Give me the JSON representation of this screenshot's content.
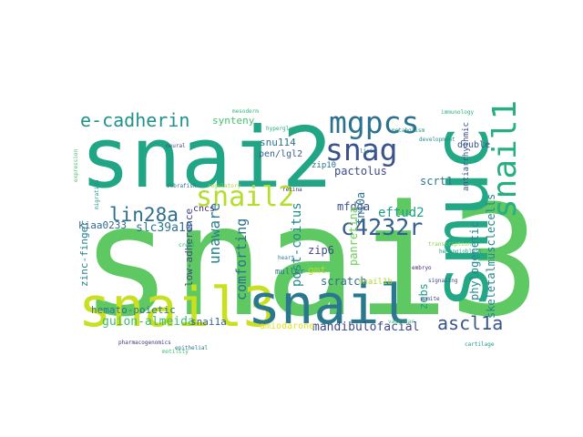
{
  "words": [
    {
      "id": "snai3",
      "text": "snai3",
      "color": "#5ec962"
    },
    {
      "id": "snai2",
      "text": "snai2",
      "color": "#21a685"
    },
    {
      "id": "smuc",
      "text": "smuc",
      "color": "#22a884"
    },
    {
      "id": "snail3",
      "text": "snail3",
      "color": "#c8e020"
    },
    {
      "id": "snail",
      "text": "snail",
      "color": "#2a788e"
    },
    {
      "id": "mgpcs",
      "text": "mgpcs",
      "color": "#2c728e"
    },
    {
      "id": "snag",
      "text": "snag",
      "color": "#3b528b"
    },
    {
      "id": "snail1",
      "text": "snail1",
      "color": "#28ae80"
    },
    {
      "id": "snail2",
      "text": "snail2",
      "color": "#b5de2b"
    },
    {
      "id": "e-cadherin",
      "text": "e-cadherin",
      "color": "#21918c"
    },
    {
      "id": "lin28a",
      "text": "lin28a",
      "color": "#2e6e8e"
    },
    {
      "id": "c4232r",
      "text": "c4232r",
      "color": "#355f8d"
    },
    {
      "id": "ascl1a",
      "text": "ascl1a",
      "color": "#39568c"
    },
    {
      "id": "unaware",
      "text": "unaware",
      "color": "#277f8e"
    },
    {
      "id": "comforting",
      "text": "comforting",
      "color": "#2d708e"
    },
    {
      "id": "guion-almeida",
      "text": "guion-almeida",
      "color": "#3fbc73"
    },
    {
      "id": "snai1a",
      "text": "snai1a",
      "color": "#33638d"
    },
    {
      "id": "slc39a10",
      "text": "slc39a10",
      "color": "#2b758e"
    },
    {
      "id": "kiaa0233",
      "text": "kiaa0233",
      "color": "#31688e"
    },
    {
      "id": "zinc-finger",
      "text": "zinc-finger",
      "color": "#26828e"
    },
    {
      "id": "low-adherence",
      "text": "low-adherence",
      "color": "#404688"
    },
    {
      "id": "hemato-poietic",
      "text": "hemato-poietic",
      "color": "#2a788e"
    },
    {
      "id": "post-coitus",
      "text": "post-coitus",
      "color": "#238a8d"
    },
    {
      "id": "pactolus",
      "text": "pactolus",
      "color": "#3e4a89"
    },
    {
      "id": "mfdga",
      "text": "mfdga",
      "color": "#3b528b"
    },
    {
      "id": "eftud2",
      "text": "eftud2",
      "color": "#1f9e89"
    },
    {
      "id": "fn10a",
      "text": "fn10a",
      "color": "#2c728e"
    },
    {
      "id": "panretina",
      "text": "panretina",
      "color": "#6ece58"
    },
    {
      "id": "scrt1",
      "text": "scrt1",
      "color": "#2a788e"
    },
    {
      "id": "zebs",
      "text": "zebs",
      "color": "#1fa088"
    },
    {
      "id": "phylogenetic",
      "text": "phylogenetic",
      "color": "#24868e"
    },
    {
      "id": "skeletalmusclecells",
      "text": "skeletalmusclecells",
      "color": "#25848e"
    },
    {
      "id": "mandibulofacial",
      "text": "mandibulofacial",
      "color": "#3e4989"
    },
    {
      "id": "amiodarone",
      "text": "amiodarone",
      "color": "#dde318"
    },
    {
      "id": "zip6",
      "text": "zip6",
      "color": "#3e4989"
    },
    {
      "id": "scratch",
      "text": "scratch",
      "color": "#2e6e8e"
    },
    {
      "id": "snu114",
      "text": "snu114",
      "color": "#2c738e"
    },
    {
      "id": "pen-lgl2",
      "text": "pen/lgl2",
      "color": "#355e8d"
    },
    {
      "id": "synteny",
      "text": "synteny",
      "color": "#48c16e"
    },
    {
      "id": "zip10",
      "text": "zip10",
      "color": "#2c738e"
    },
    {
      "id": "double",
      "text": "double",
      "color": "#3b528b"
    },
    {
      "id": "antiarrhythmic",
      "text": "antiarrhythmic",
      "color": "#3b528b"
    },
    {
      "id": "cncs",
      "text": "cncs",
      "color": "#482878"
    },
    {
      "id": "gmt",
      "text": "gmt",
      "color": "#b5de2b"
    },
    {
      "id": "muller",
      "text": "muller",
      "color": "#2a788e"
    },
    {
      "id": "snail1b",
      "text": "snail1b",
      "color": "#addc30"
    },
    {
      "id": "immunology",
      "text": "immunology",
      "color": "#30b47b"
    },
    {
      "id": "metabolism",
      "text": "metabolism",
      "color": "#1f958b"
    },
    {
      "id": "pharmacogenomics",
      "text": "pharmacogenomics",
      "color": "#46327e"
    },
    {
      "id": "hyperglycemia",
      "text": "hyperglycemia",
      "color": "#26ad81"
    },
    {
      "id": "lipid",
      "text": "lipid",
      "color": "#2a788e"
    },
    {
      "id": "transcription",
      "text": "transcription",
      "color": "#86d549"
    },
    {
      "id": "migration",
      "text": "migration",
      "color": "#21918c"
    },
    {
      "id": "neural",
      "text": "neural",
      "color": "#3f4788"
    },
    {
      "id": "crest",
      "text": "crest",
      "color": "#25ac82"
    },
    {
      "id": "embryo",
      "text": "embryo",
      "color": "#482475"
    },
    {
      "id": "zebrafish",
      "text": "zebrafish",
      "color": "#2d708e"
    },
    {
      "id": "vascular",
      "text": "vascular",
      "color": "#3dbc74"
    },
    {
      "id": "hemangioblast",
      "text": "hemangioblast",
      "color": "#1e9b8a"
    },
    {
      "id": "mesoderm",
      "text": "mesoderm",
      "color": "#35b779"
    },
    {
      "id": "somite",
      "text": "somite",
      "color": "#433e85"
    },
    {
      "id": "cartilage",
      "text": "cartilage",
      "color": "#1f9a8a"
    },
    {
      "id": "regulatory",
      "text": "regulatory",
      "color": "#9bd93c"
    },
    {
      "id": "epithelial",
      "text": "epithelial",
      "color": "#2a768e"
    },
    {
      "id": "signaling",
      "text": "signaling",
      "color": "#3e4c8a"
    },
    {
      "id": "development",
      "text": "development",
      "color": "#21908d"
    },
    {
      "id": "expression",
      "text": "expression",
      "color": "#4ac16d"
    },
    {
      "id": "retina",
      "text": "retina",
      "color": "#472d7b"
    },
    {
      "id": "heart",
      "text": "heart",
      "color": "#26818e"
    },
    {
      "id": "motility",
      "text": "motility",
      "color": "#3aba76"
    }
  ]
}
